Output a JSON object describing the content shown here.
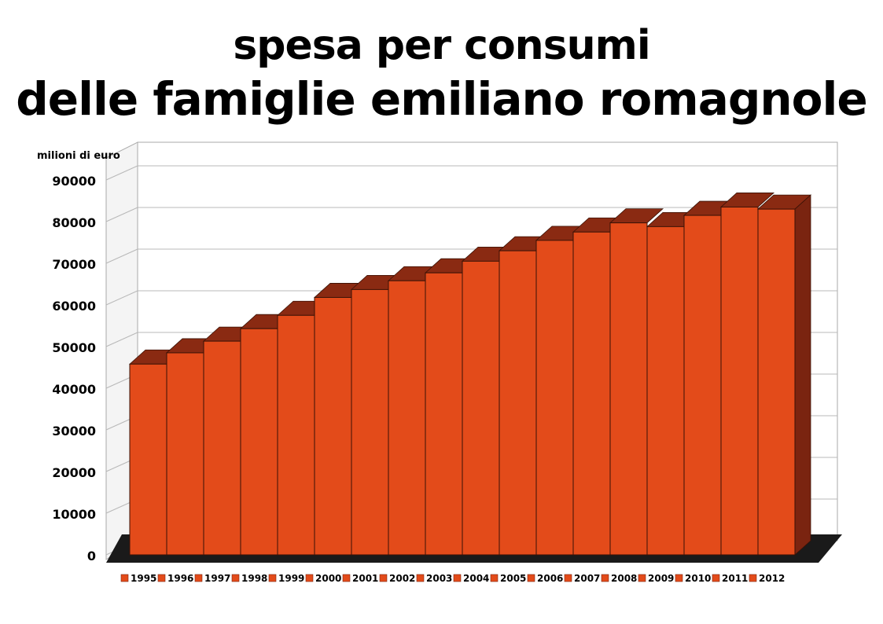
{
  "chart_data": {
    "type": "bar",
    "title_line1": "spesa per consumi",
    "title_line2": "delle famiglie emiliano romagnole",
    "ylabel": "milioni di euro",
    "xlabel": "",
    "ylim": [
      0,
      90000
    ],
    "yticks": [
      0,
      10000,
      20000,
      30000,
      40000,
      50000,
      60000,
      70000,
      80000,
      90000
    ],
    "categories": [
      "1995",
      "1996",
      "1997",
      "1998",
      "1999",
      "2000",
      "2001",
      "2002",
      "2003",
      "2004",
      "2005",
      "2006",
      "2007",
      "2008",
      "2009",
      "2010",
      "2011",
      "2012"
    ],
    "values": [
      45800,
      48500,
      51300,
      54300,
      57500,
      61800,
      63700,
      65800,
      67700,
      70500,
      73000,
      75500,
      77500,
      79700,
      78800,
      81500,
      83500,
      83000
    ],
    "legend": [
      "1995",
      "1996",
      "1997",
      "1998",
      "1999",
      "2000",
      "2001",
      "2002",
      "2003",
      "2004",
      "2005",
      "2006",
      "2007",
      "2008",
      "2009",
      "2010",
      "2011",
      "2012"
    ],
    "legend_position": "bottom",
    "grid": true,
    "three_d": true,
    "colors": {
      "bar_front": "#e34b1a",
      "bar_top": "#8a2a12",
      "bar_side": "#7a2410",
      "floor": "#1a1a1a",
      "grid": "#b8b8b8"
    }
  }
}
